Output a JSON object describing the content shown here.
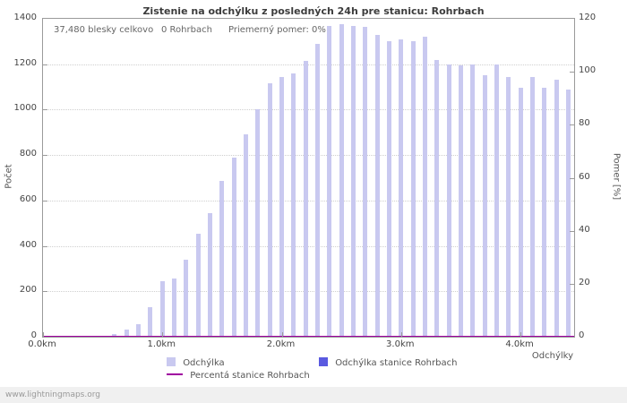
{
  "title": "Zistenie na odchýlku z posledných 24h pre stanicu: Rohrbach",
  "annotations": {
    "total": "37,480 blesky celkovo",
    "station": "0 Rohrbach",
    "ratio": "Priemerný pomer: 0%"
  },
  "axes": {
    "left_label": "Počet",
    "right_label": "Pomer [%]",
    "x_label": "Odchýlky",
    "left_ticks": [
      0,
      200,
      400,
      600,
      800,
      1000,
      1200,
      1400
    ],
    "right_ticks": [
      0,
      20,
      40,
      60,
      80,
      100,
      120
    ],
    "x_ticks": [
      {
        "value": 0.0,
        "label": "0.0km"
      },
      {
        "value": 1.0,
        "label": "1.0km"
      },
      {
        "value": 2.0,
        "label": "2.0km"
      },
      {
        "value": 3.0,
        "label": "3.0km"
      },
      {
        "value": 4.0,
        "label": "4.0km"
      }
    ]
  },
  "legend": [
    {
      "label": "Odchýlka",
      "color": "#c9c9f0",
      "type": "swatch"
    },
    {
      "label": "Odchýlka stanice Rohrbach",
      "color": "#5a5ae0",
      "type": "swatch"
    },
    {
      "label": "Percentá stanice Rohrbach",
      "color": "#a000a0",
      "type": "line"
    }
  ],
  "watermark": "www.lightningmaps.org",
  "colors": {
    "bar": "#c9c9f0",
    "station_bar": "#5a5ae0",
    "percent_line": "#a000a0",
    "grid": "#cfcfcf",
    "axis": "#9a9a9a"
  },
  "chart_data": {
    "type": "bar",
    "title": "Zistenie na odchýlku z posledných 24h pre stanicu: Rohrbach",
    "xlabel": "Odchýlky",
    "ylabel_left": "Počet",
    "ylabel_right": "Pomer [%]",
    "xlim": [
      0,
      4.45
    ],
    "ylim_left": [
      0,
      1400
    ],
    "ylim_right": [
      0,
      120
    ],
    "grid": "horizontal-dotted",
    "legend_position": "bottom",
    "x": [
      0.0,
      0.1,
      0.2,
      0.3,
      0.4,
      0.5,
      0.6,
      0.7,
      0.8,
      0.9,
      1.0,
      1.1,
      1.2,
      1.3,
      1.4,
      1.5,
      1.6,
      1.7,
      1.8,
      1.9,
      2.0,
      2.1,
      2.2,
      2.3,
      2.4,
      2.5,
      2.6,
      2.7,
      2.8,
      2.9,
      3.0,
      3.1,
      3.2,
      3.3,
      3.4,
      3.5,
      3.6,
      3.7,
      3.8,
      3.9,
      4.0,
      4.1,
      4.2,
      4.3,
      4.4
    ],
    "series": [
      {
        "name": "Odchýlka",
        "axis": "left",
        "values": [
          0,
          0,
          0,
          0,
          0,
          0,
          10,
          30,
          55,
          130,
          245,
          255,
          340,
          455,
          545,
          685,
          790,
          890,
          1000,
          1115,
          1145,
          1160,
          1215,
          1290,
          1370,
          1375,
          1370,
          1365,
          1330,
          1300,
          1310,
          1300,
          1320,
          1220,
          1200,
          1195,
          1200,
          1150,
          1200,
          1145,
          1095,
          1145,
          1095,
          1130,
          1090
        ]
      },
      {
        "name": "Odchýlka stanice Rohrbach",
        "axis": "left",
        "values": [
          0,
          0,
          0,
          0,
          0,
          0,
          0,
          0,
          0,
          0,
          0,
          0,
          0,
          0,
          0,
          0,
          0,
          0,
          0,
          0,
          0,
          0,
          0,
          0,
          0,
          0,
          0,
          0,
          0,
          0,
          0,
          0,
          0,
          0,
          0,
          0,
          0,
          0,
          0,
          0,
          0,
          0,
          0,
          0,
          0
        ]
      },
      {
        "name": "Percentá stanice Rohrbach",
        "axis": "right",
        "values": [
          0,
          0,
          0,
          0,
          0,
          0,
          0,
          0,
          0,
          0,
          0,
          0,
          0,
          0,
          0,
          0,
          0,
          0,
          0,
          0,
          0,
          0,
          0,
          0,
          0,
          0,
          0,
          0,
          0,
          0,
          0,
          0,
          0,
          0,
          0,
          0,
          0,
          0,
          0,
          0,
          0,
          0,
          0,
          0,
          0
        ]
      }
    ]
  }
}
